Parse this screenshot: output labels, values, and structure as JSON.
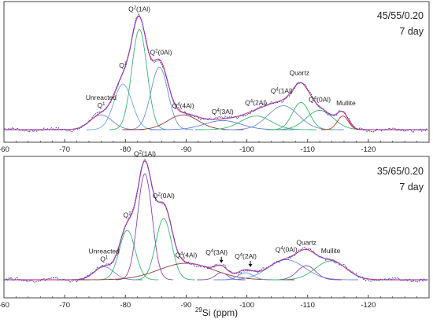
{
  "chart_data": [
    {
      "type": "line",
      "title": "45/55/0.20",
      "subtitle": "7 day",
      "xlim": [
        -60,
        -130
      ],
      "x_ticks": [
        "-60",
        "-70",
        "-80",
        "-90",
        "-100",
        "-110",
        "-120"
      ],
      "x_tick_values": [
        -60,
        -70,
        -80,
        -90,
        -100,
        -110,
        -120
      ],
      "grid": false,
      "peaks": [
        {
          "label": "Unreacted Q",
          "sup": "1",
          "center": -76.0,
          "height": 0.13,
          "width": 1.8,
          "color": "#7f7fd0"
        },
        {
          "label": "Q",
          "sup": "1",
          "center": -79.6,
          "height": 0.4,
          "width": 1.5,
          "color": "#6fa8dc"
        },
        {
          "label": "Q",
          "sup": "2",
          "suffix": "(1Al)",
          "center": -82.3,
          "height": 0.88,
          "width": 1.25,
          "color": "#3cb371"
        },
        {
          "label": "Q",
          "sup": "2",
          "suffix": "(0Al)",
          "center": -85.6,
          "height": 0.55,
          "width": 1.4,
          "color": "#6a8fd8"
        },
        {
          "label": "Q",
          "sup": "4",
          "suffix": "(4Al)",
          "center": -89.5,
          "height": 0.13,
          "width": 2.5,
          "color": "#8b3a3a"
        },
        {
          "label": "Q",
          "sup": "4",
          "suffix": "(3Al)",
          "center": -96.0,
          "height": 0.08,
          "width": 3.0,
          "color": "#5b7fd8"
        },
        {
          "label": "Q",
          "sup": "4",
          "suffix": "(2Al)",
          "center": -101.5,
          "height": 0.12,
          "width": 2.5,
          "color": "#3cb371"
        },
        {
          "label": "Q",
          "sup": "4",
          "suffix": "(1Al)",
          "center": -106.0,
          "height": 0.21,
          "width": 2.5,
          "color": "#6a8fd8"
        },
        {
          "label": "Quartz",
          "center": -108.9,
          "height": 0.24,
          "width": 1.4,
          "color": "#3cb371"
        },
        {
          "label": "Q",
          "sup": "4",
          "suffix": "(0Al)",
          "center": -112.0,
          "height": 0.17,
          "width": 2.2,
          "color": "#3cb371"
        },
        {
          "label": "Mullite",
          "center": -115.8,
          "height": 0.12,
          "width": 0.9,
          "color": "#c0392b"
        }
      ]
    },
    {
      "type": "line",
      "title": "35/65/0.20",
      "subtitle": "7 day",
      "xlim": [
        -60,
        -130
      ],
      "x_ticks": [
        "-60",
        "-70",
        "-80",
        "-90",
        "-100",
        "-110",
        "-120"
      ],
      "x_tick_values": [
        -60,
        -70,
        -80,
        -90,
        -100,
        -110,
        -120
      ],
      "xlabel_sup": "29",
      "xlabel": "Si (ppm)",
      "grid": false,
      "peaks": [
        {
          "label": "Unreacted Q",
          "sup": "1",
          "center": -76.5,
          "height": 0.11,
          "width": 1.6,
          "color": "#7f7fd0"
        },
        {
          "label": "Q",
          "sup": "1",
          "center": -80.3,
          "height": 0.42,
          "width": 1.3,
          "color": "#3cb371"
        },
        {
          "label": "Q",
          "sup": "2",
          "suffix": "(1Al)",
          "center": -83.2,
          "height": 0.9,
          "width": 1.2,
          "color": "#8e44ad"
        },
        {
          "label": "Q",
          "sup": "2",
          "suffix": "(0Al)",
          "center": -86.3,
          "height": 0.52,
          "width": 1.3,
          "color": "#3cb371"
        },
        {
          "label": "Q",
          "sup": "4",
          "suffix": "(4Al)",
          "center": -90.0,
          "height": 0.14,
          "width": 4.5,
          "color": "#8b3a3a"
        },
        {
          "label": "Q",
          "sup": "4",
          "suffix": "(3Al)",
          "center": -95.8,
          "height": 0.06,
          "width": 1.0,
          "color": "#8e44ad"
        },
        {
          "label": "Q",
          "sup": "4",
          "suffix": "(2Al)",
          "center": -99.8,
          "height": 0.06,
          "width": 1.2,
          "color": "#6a8fd8"
        },
        {
          "label": "Q",
          "sup": "4",
          "suffix": "(0Al)",
          "center": -106.5,
          "height": 0.17,
          "width": 3.0,
          "color": "#6a8fd8"
        },
        {
          "label": "Quartz",
          "center": -109.8,
          "height": 0.12,
          "width": 1.5,
          "color": "#8e44ad"
        },
        {
          "label": "Mullite",
          "center": -113.8,
          "height": 0.16,
          "width": 2.5,
          "color": "#3cb371"
        }
      ]
    }
  ]
}
